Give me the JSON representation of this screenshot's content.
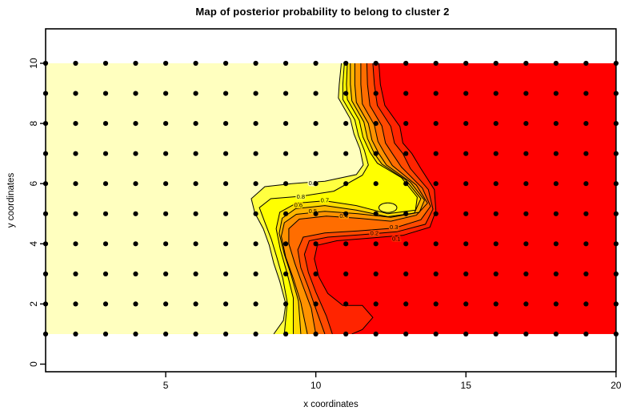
{
  "figure": {
    "title": "Map of posterior probability to belong to cluster  2",
    "xlabel": "x coordinates",
    "ylabel": "y coordinates"
  },
  "chart_data": {
    "type": "filled_contour",
    "title": "Map of posterior probability to belong to cluster  2",
    "xlabel": "x coordinates",
    "ylabel": "y coordinates",
    "xlim": [
      1,
      20
    ],
    "ylim": [
      0,
      11.2
    ],
    "x_ticks": [
      5,
      10,
      15,
      20
    ],
    "y_ticks": [
      0,
      2,
      4,
      6,
      8,
      10
    ],
    "grid": false,
    "fill_region": {
      "x": [
        1,
        20
      ],
      "y": [
        1,
        10
      ]
    },
    "grid_points": {
      "x_values": [
        1,
        2,
        3,
        4,
        5,
        6,
        7,
        8,
        9,
        10,
        11,
        12,
        13,
        14,
        15,
        16,
        17,
        18,
        19,
        20
      ],
      "y_values": [
        1,
        2,
        3,
        4,
        5,
        6,
        7,
        8,
        9,
        10
      ],
      "marker": "filled-black-dot"
    },
    "value_bands": [
      "0.0-0.1",
      "0.1-0.2",
      "0.2-0.3",
      "0.3-0.4",
      "0.4-0.5",
      "0.5-0.6",
      "0.6-0.7",
      "0.7-0.8",
      "0.8-0.9",
      "0.9-1.0"
    ],
    "palette": [
      "#FF0000",
      "#FF2400",
      "#FF4900",
      "#FF6D00",
      "#FF9200",
      "#FFB600",
      "#FFDB00",
      "#FFFF00",
      "#FFFF40",
      "#FFFFBF"
    ],
    "orientation_note": "probability ~1 (pale cream) on left half, ~0 (red) on right half",
    "contours": [
      {
        "level": 0.1,
        "points": [
          [
            12.1,
            10
          ],
          [
            12.15,
            9.3
          ],
          [
            12.3,
            8.6
          ],
          [
            12.8,
            7.9
          ],
          [
            12.9,
            7.35
          ],
          [
            13.2,
            7.0
          ],
          [
            13.5,
            6.5
          ],
          [
            13.95,
            5.8
          ],
          [
            14.0,
            5.1
          ],
          [
            13.8,
            4.55
          ],
          [
            12.9,
            4.28
          ],
          [
            11.7,
            4.18
          ],
          [
            10.7,
            4.1
          ],
          [
            10.05,
            3.95
          ],
          [
            9.95,
            3.5
          ],
          [
            10.1,
            2.9
          ],
          [
            10.4,
            2.35
          ],
          [
            10.9,
            1.95
          ],
          [
            11.55,
            1.95
          ],
          [
            11.9,
            1.55
          ],
          [
            11.55,
            1.15
          ],
          [
            11.2,
            1.0
          ]
        ]
      },
      {
        "level": 0.2,
        "points": [
          [
            11.9,
            10
          ],
          [
            11.95,
            9.3
          ],
          [
            12.05,
            8.6
          ],
          [
            12.5,
            7.9
          ],
          [
            12.62,
            7.35
          ],
          [
            12.9,
            7.0
          ],
          [
            13.15,
            6.5
          ],
          [
            13.75,
            5.8
          ],
          [
            13.9,
            5.15
          ],
          [
            13.65,
            4.65
          ],
          [
            12.7,
            4.4
          ],
          [
            11.5,
            4.3
          ],
          [
            10.4,
            4.22
          ],
          [
            9.78,
            4.1
          ],
          [
            9.62,
            3.65
          ],
          [
            9.75,
            3.05
          ],
          [
            10.0,
            2.4
          ],
          [
            10.35,
            1.6
          ],
          [
            10.55,
            1.0
          ]
        ]
      },
      {
        "level": 0.3,
        "points": [
          [
            11.7,
            10
          ],
          [
            11.72,
            9.3
          ],
          [
            11.8,
            8.6
          ],
          [
            12.2,
            7.92
          ],
          [
            12.32,
            7.35
          ],
          [
            12.55,
            7.0
          ],
          [
            12.85,
            6.55
          ],
          [
            13.55,
            5.85
          ],
          [
            13.82,
            5.25
          ],
          [
            13.5,
            4.8
          ],
          [
            12.6,
            4.52
          ],
          [
            11.4,
            4.43
          ],
          [
            10.3,
            4.36
          ],
          [
            9.58,
            4.22
          ],
          [
            9.4,
            3.8
          ],
          [
            9.5,
            3.2
          ],
          [
            9.75,
            2.55
          ],
          [
            10.05,
            1.7
          ],
          [
            10.3,
            1.0
          ]
        ]
      },
      {
        "level": 0.4,
        "points": [
          [
            11.5,
            10
          ],
          [
            11.5,
            9.3
          ],
          [
            11.55,
            8.65
          ],
          [
            11.95,
            7.95
          ],
          [
            12.07,
            7.4
          ],
          [
            12.3,
            7.0
          ],
          [
            12.55,
            6.6
          ],
          [
            13.35,
            5.95
          ],
          [
            13.72,
            5.35
          ],
          [
            13.35,
            4.95
          ],
          [
            12.5,
            4.75
          ],
          [
            11.4,
            4.85
          ],
          [
            10.35,
            4.92
          ],
          [
            9.45,
            4.82
          ],
          [
            9.1,
            4.5
          ],
          [
            9.1,
            4.0
          ],
          [
            9.3,
            3.35
          ],
          [
            9.55,
            2.65
          ],
          [
            9.85,
            1.85
          ],
          [
            10.0,
            1.0
          ]
        ]
      },
      {
        "level": 0.5,
        "points": [
          [
            11.3,
            10
          ],
          [
            11.3,
            9.3
          ],
          [
            11.35,
            8.7
          ],
          [
            11.75,
            8.0
          ],
          [
            11.87,
            7.45
          ],
          [
            12.1,
            7.0
          ],
          [
            12.35,
            6.62
          ],
          [
            13.15,
            6.05
          ],
          [
            13.62,
            5.45
          ],
          [
            13.45,
            5.05
          ],
          [
            12.5,
            4.88
          ],
          [
            11.4,
            5.0
          ],
          [
            10.3,
            5.08
          ],
          [
            9.35,
            4.98
          ],
          [
            8.95,
            4.7
          ],
          [
            8.85,
            4.25
          ],
          [
            9.0,
            3.55
          ],
          [
            9.25,
            2.85
          ],
          [
            9.5,
            2.05
          ],
          [
            9.72,
            1.0
          ]
        ]
      },
      {
        "level": 0.6,
        "points": [
          [
            11.15,
            10
          ],
          [
            11.15,
            9.3
          ],
          [
            11.2,
            8.75
          ],
          [
            11.6,
            8.05
          ],
          [
            11.72,
            7.5
          ],
          [
            11.95,
            7.0
          ],
          [
            12.2,
            6.65
          ],
          [
            13.0,
            6.12
          ],
          [
            13.5,
            5.5
          ],
          [
            13.28,
            5.02
          ],
          [
            12.4,
            4.9
          ],
          [
            11.35,
            5.12
          ],
          [
            10.3,
            5.27
          ],
          [
            9.33,
            5.17
          ],
          [
            8.88,
            4.85
          ],
          [
            8.78,
            4.35
          ],
          [
            8.95,
            3.65
          ],
          [
            9.18,
            2.95
          ],
          [
            9.42,
            2.1
          ],
          [
            9.5,
            1.0
          ]
        ]
      },
      {
        "level": 0.7,
        "points": [
          [
            11.05,
            10
          ],
          [
            11.02,
            9.3
          ],
          [
            11.05,
            8.8
          ],
          [
            11.45,
            8.1
          ],
          [
            11.57,
            7.55
          ],
          [
            11.8,
            7.05
          ],
          [
            12.05,
            6.68
          ],
          [
            12.85,
            6.2
          ],
          [
            13.38,
            5.55
          ],
          [
            13.32,
            5.12
          ],
          [
            12.4,
            5.0
          ],
          [
            11.35,
            5.27
          ],
          [
            10.3,
            5.43
          ],
          [
            9.35,
            5.35
          ],
          [
            8.8,
            5.05
          ],
          [
            8.68,
            4.5
          ],
          [
            8.82,
            3.8
          ],
          [
            9.05,
            3.0
          ],
          [
            9.25,
            2.2
          ],
          [
            9.25,
            1.0
          ]
        ]
      },
      {
        "level": 0.8,
        "points": [
          [
            10.95,
            10
          ],
          [
            10.9,
            9.3
          ],
          [
            10.9,
            8.8
          ],
          [
            11.3,
            8.12
          ],
          [
            11.42,
            7.6
          ],
          [
            11.62,
            7.1
          ],
          [
            11.75,
            6.62
          ],
          [
            11.55,
            6.28
          ],
          [
            10.6,
            5.75
          ],
          [
            9.5,
            5.58
          ],
          [
            8.5,
            5.5
          ],
          [
            8.12,
            5.2
          ],
          [
            8.3,
            4.72
          ],
          [
            8.52,
            4.15
          ],
          [
            8.7,
            3.55
          ],
          [
            8.9,
            2.85
          ],
          [
            9.05,
            2.05
          ],
          [
            8.95,
            1.0
          ]
        ]
      },
      {
        "level": 0.9,
        "points": [
          [
            10.85,
            10
          ],
          [
            10.78,
            9.3
          ],
          [
            10.75,
            8.85
          ],
          [
            11.15,
            8.15
          ],
          [
            11.27,
            7.65
          ],
          [
            11.47,
            7.15
          ],
          [
            11.58,
            6.62
          ],
          [
            11.35,
            6.3
          ],
          [
            10.3,
            6.08
          ],
          [
            9.2,
            6.0
          ],
          [
            8.3,
            5.9
          ],
          [
            7.85,
            5.5
          ],
          [
            7.97,
            5.02
          ],
          [
            8.25,
            4.5
          ],
          [
            8.45,
            3.95
          ],
          [
            8.6,
            3.35
          ],
          [
            8.8,
            2.75
          ],
          [
            9.0,
            2.0
          ],
          [
            8.92,
            1.45
          ],
          [
            8.6,
            1.0
          ]
        ]
      }
    ],
    "islands": [
      {
        "level": 0.8,
        "cx": 12.4,
        "cy": 5.2,
        "rx": 0.3,
        "ry": 0.16
      }
    ],
    "contour_labels": [
      {
        "text": "0.9",
        "x": 9.9,
        "y": 6.02,
        "halo": "#FFFFBF"
      },
      {
        "text": "0.8",
        "x": 9.5,
        "y": 5.57,
        "halo": "#FFFF40"
      },
      {
        "text": "0.7",
        "x": 10.3,
        "y": 5.45,
        "halo": "#FFFF00"
      },
      {
        "text": "0.6",
        "x": 9.42,
        "y": 5.28,
        "halo": "#FFDB00"
      },
      {
        "text": "0.5",
        "x": 9.9,
        "y": 5.08,
        "halo": "#FFB600"
      },
      {
        "text": "0.4",
        "x": 10.93,
        "y": 4.93,
        "halo": "#FF9200"
      },
      {
        "text": "0.3",
        "x": 12.6,
        "y": 4.55,
        "halo": "#FF6D00"
      },
      {
        "text": "0.2",
        "x": 11.95,
        "y": 4.35,
        "halo": "#FF4900"
      },
      {
        "text": "0.1",
        "x": 12.68,
        "y": 4.17,
        "halo": "#FF2400"
      }
    ],
    "style": {
      "dot_radius_px": 3.1,
      "contour_stroke": "#000000",
      "box_stroke": "#000000",
      "background": "#FFFFFF"
    }
  }
}
